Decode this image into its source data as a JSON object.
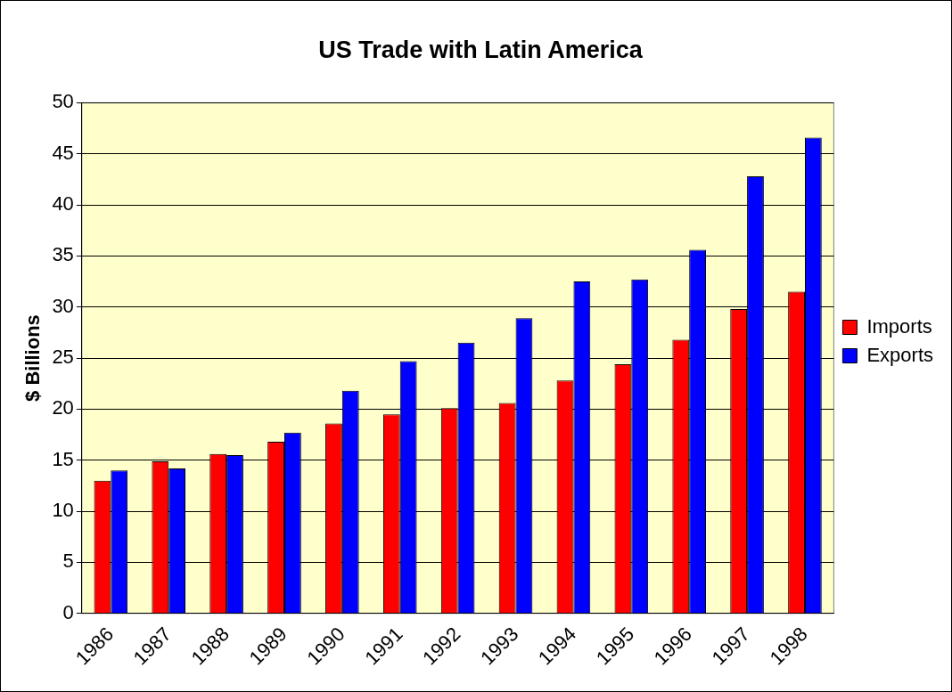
{
  "chart_data": {
    "type": "bar",
    "title": "US Trade with Latin America",
    "ylabel": "$ Billions",
    "categories": [
      "1986",
      "1987",
      "1988",
      "1989",
      "1990",
      "1991",
      "1992",
      "1993",
      "1994",
      "1995",
      "1996",
      "1997",
      "1998"
    ],
    "series": [
      {
        "name": "Imports",
        "color": "#ff0000",
        "values": [
          13.0,
          14.9,
          15.6,
          16.8,
          18.6,
          19.5,
          20.1,
          20.6,
          22.8,
          24.4,
          26.8,
          29.8,
          31.5
        ]
      },
      {
        "name": "Exports",
        "color": "#0000ff",
        "values": [
          14.0,
          14.2,
          15.5,
          17.7,
          21.8,
          24.7,
          26.5,
          28.9,
          32.5,
          32.7,
          35.6,
          42.8,
          46.6
        ]
      }
    ],
    "ylim": [
      0,
      50
    ],
    "yticks": [
      0,
      5,
      10,
      15,
      20,
      25,
      30,
      35,
      40,
      45,
      50
    ],
    "grid": "y",
    "legend": "right"
  }
}
